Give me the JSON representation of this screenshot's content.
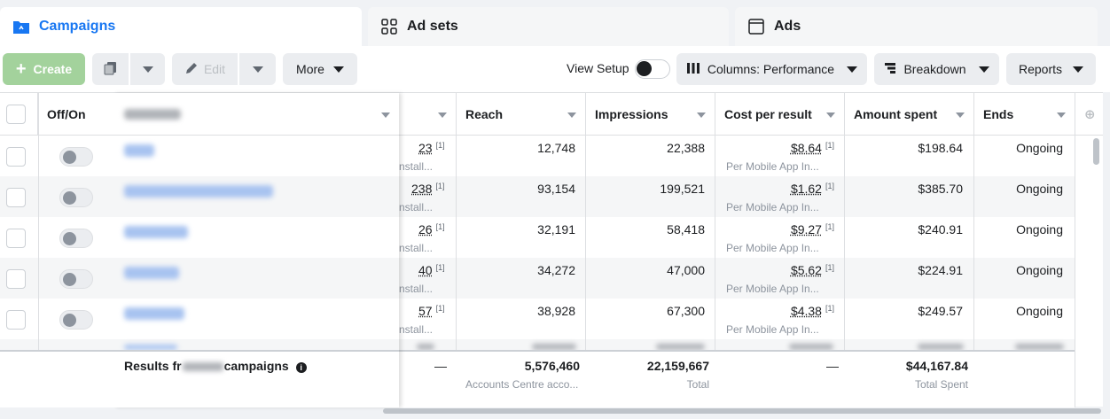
{
  "tabs": {
    "campaigns": "Campaigns",
    "adsets": "Ad sets",
    "ads": "Ads"
  },
  "toolbar": {
    "create": "Create",
    "edit": "Edit",
    "more": "More",
    "view_setup": "View Setup",
    "columns": "Columns: Performance",
    "breakdown": "Breakdown",
    "reports": "Reports"
  },
  "columns": {
    "offon": "Off/On",
    "reach": "Reach",
    "impressions": "Impressions",
    "cost_per_result": "Cost per result",
    "amount_spent": "Amount spent",
    "ends": "Ends"
  },
  "rows": [
    {
      "results": "23",
      "results_sup": "[1]",
      "results_sub": "nstall...",
      "reach": "12,748",
      "impressions": "22,388",
      "cost": "$8.64",
      "cost_sup": "[1]",
      "cost_sub": "Per Mobile App In...",
      "spent": "$198.64",
      "ends": "Ongoing"
    },
    {
      "results": "238",
      "results_sup": "[1]",
      "results_sub": "nstall...",
      "reach": "93,154",
      "impressions": "199,521",
      "cost": "$1.62",
      "cost_sup": "[1]",
      "cost_sub": "Per Mobile App In...",
      "spent": "$385.70",
      "ends": "Ongoing"
    },
    {
      "results": "26",
      "results_sup": "[1]",
      "results_sub": "nstall...",
      "reach": "32,191",
      "impressions": "58,418",
      "cost": "$9.27",
      "cost_sup": "[1]",
      "cost_sub": "Per Mobile App In...",
      "spent": "$240.91",
      "ends": "Ongoing"
    },
    {
      "results": "40",
      "results_sup": "[1]",
      "results_sub": "nstall...",
      "reach": "34,272",
      "impressions": "47,000",
      "cost": "$5.62",
      "cost_sup": "[1]",
      "cost_sub": "Per Mobile App In...",
      "spent": "$224.91",
      "ends": "Ongoing"
    },
    {
      "results": "57",
      "results_sup": "[1]",
      "results_sub": "nstall...",
      "reach": "38,928",
      "impressions": "67,300",
      "cost": "$4.38",
      "cost_sup": "[1]",
      "cost_sub": "Per Mobile App In...",
      "spent": "$249.57",
      "ends": "Ongoing"
    }
  ],
  "summary": {
    "results_label": "Results fr",
    "results_label_end": "campaigns",
    "results_dash": "—",
    "reach": "5,576,460",
    "reach_sub": "Accounts Centre acco...",
    "impressions": "22,159,667",
    "impressions_sub": "Total",
    "cost_dash": "—",
    "spent": "$44,167.84",
    "spent_sub": "Total Spent"
  },
  "colors": {
    "accent": "#1877f2",
    "create_bg": "#a3d29c"
  }
}
